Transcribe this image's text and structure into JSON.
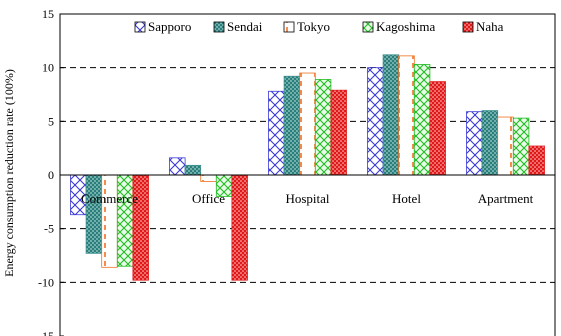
{
  "chart_data": {
    "type": "bar",
    "title": "",
    "xlabel": "",
    "ylabel": "Energy consumption reduction rate (100%)",
    "ylim": [
      -15,
      15
    ],
    "yticks": [
      15,
      10,
      5,
      0,
      -5,
      -10,
      -15
    ],
    "grid": true,
    "legend_position": "top",
    "categories": [
      "Commerce",
      "Office",
      "Hospital",
      "Hotel",
      "Apartment"
    ],
    "series": [
      {
        "name": "Sapporo",
        "pattern": "crosshatch-blue",
        "color": "#3a3ad8",
        "values": [
          -3.7,
          1.6,
          7.8,
          10.0,
          5.9
        ]
      },
      {
        "name": "Sendai",
        "pattern": "dots-teal",
        "color": "#3d8f8f",
        "values": [
          -7.3,
          0.9,
          9.2,
          11.2,
          6.0
        ]
      },
      {
        "name": "Tokyo",
        "pattern": "vertical-dash-orange",
        "color": "#f07020",
        "values": [
          -8.6,
          -0.6,
          9.5,
          11.1,
          5.4
        ]
      },
      {
        "name": "Kagoshima",
        "pattern": "grid-green",
        "color": "#22bb22",
        "values": [
          -8.5,
          -2.0,
          8.9,
          10.3,
          5.3
        ]
      },
      {
        "name": "Naha",
        "pattern": "dots-red",
        "color": "#e01818",
        "values": [
          -9.8,
          -9.8,
          7.9,
          8.7,
          2.7
        ]
      }
    ]
  }
}
